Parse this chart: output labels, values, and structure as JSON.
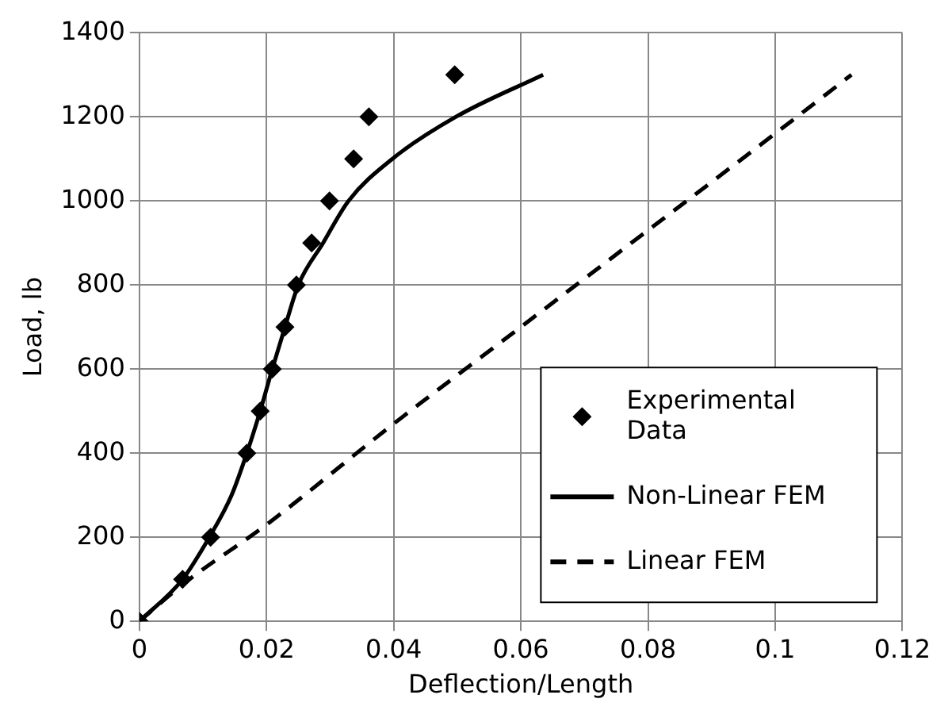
{
  "chart_data": {
    "type": "line",
    "xlabel": "Deflection/Length",
    "ylabel": "Load, lb",
    "xlim": [
      0,
      0.12
    ],
    "xticks": [
      0,
      0.02,
      0.04,
      0.06,
      0.08,
      0.1,
      0.12
    ],
    "ylim": [
      0,
      1400
    ],
    "yticks": [
      0,
      200,
      400,
      600,
      800,
      1000,
      1200,
      1400
    ],
    "grid": true,
    "legend": "bottom right",
    "series": [
      {
        "name": "Experimental Data",
        "type": "scatter",
        "marker": "diamond",
        "color": "#000000",
        "x": [
          0,
          0.0068,
          0.0112,
          0.0169,
          0.019,
          0.0209,
          0.0229,
          0.0247,
          0.0271,
          0.0299,
          0.0337,
          0.0361,
          0.0496
        ],
        "values": [
          0,
          100,
          200,
          400,
          500,
          600,
          700,
          800,
          900,
          1000,
          1100,
          1200,
          1300
        ]
      },
      {
        "name": "Non-Linear FEM",
        "line_style": "solid",
        "marker": "none",
        "color": "#000000",
        "x": [
          0,
          0.0068,
          0.011,
          0.0145,
          0.0169,
          0.019,
          0.0209,
          0.0229,
          0.025,
          0.0289,
          0.0329,
          0.0398,
          0.0498,
          0.0635
        ],
        "values": [
          0,
          100,
          200,
          300,
          400,
          500,
          600,
          700,
          800,
          900,
          1000,
          1100,
          1200,
          1300
        ]
      },
      {
        "name": "Linear FEM",
        "line_style": "dashed",
        "marker": "none",
        "color": "#000000",
        "x": [
          0,
          0.007,
          0.02,
          0.04,
          0.06,
          0.08,
          0.1,
          0.112
        ],
        "values": [
          0,
          90,
          230,
          470,
          700,
          930,
          1160,
          1300
        ]
      }
    ]
  }
}
